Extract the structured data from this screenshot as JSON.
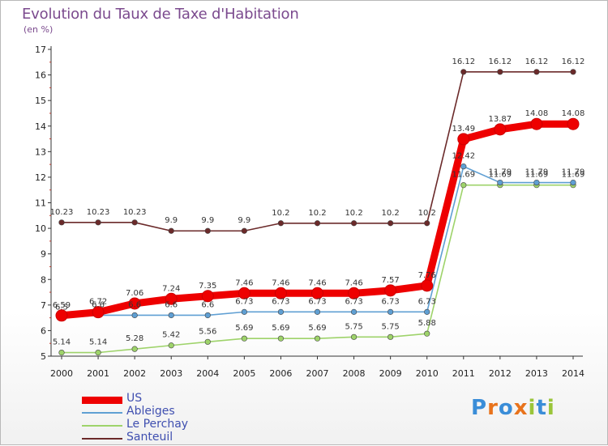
{
  "title": "Evolution du Taux de Taxe d'Habitation",
  "unit": "(en %)",
  "logo": {
    "text": "Proxiti",
    "colors": [
      "#3a8dd8",
      "#e8731c",
      "#3a8dd8",
      "#e8731c",
      "#9ac53a",
      "#3a8dd8",
      "#9ac53a"
    ]
  },
  "chart_data": {
    "type": "line",
    "title": "Evolution du Taux de Taxe d'Habitation",
    "ylabel": "(en %)",
    "xlabel": "",
    "ylim": [
      5,
      17
    ],
    "yticks": [
      "5",
      "6",
      "7",
      "8",
      "9",
      "10",
      "11",
      "12",
      "13",
      "14",
      "15",
      "16",
      "17"
    ],
    "categories": [
      "2000",
      "2001",
      "2002",
      "2003",
      "2004",
      "2005",
      "2006",
      "2007",
      "2008",
      "2009",
      "2010",
      "2011",
      "2012",
      "2013",
      "2014"
    ],
    "grid": false,
    "legend": "bottom-left",
    "series": [
      {
        "name": "Santeuil",
        "color": "#6b2a2a",
        "values": [
          10.23,
          10.23,
          10.23,
          9.9,
          9.9,
          9.9,
          10.2,
          10.2,
          10.2,
          10.2,
          10.2,
          16.12,
          16.12,
          16.12,
          16.12
        ],
        "labels": [
          "10.23",
          "10.23",
          "10.23",
          "9.9",
          "9.9",
          "9.9",
          "10.2",
          "10.2",
          "10.2",
          "10.2",
          "10.2",
          "16.12",
          "16.12",
          "16.12",
          "16.12"
        ]
      },
      {
        "name": "Le Perchay",
        "color": "#9ed36a",
        "values": [
          5.14,
          5.14,
          5.28,
          5.42,
          5.56,
          5.69,
          5.69,
          5.69,
          5.75,
          5.75,
          5.88,
          11.69,
          11.69,
          11.69,
          11.69
        ],
        "labels": [
          "5.14",
          "5.14",
          "5.28",
          "5.42",
          "5.56",
          "5.69",
          "5.69",
          "5.69",
          "5.75",
          "5.75",
          "5.88",
          "11.69",
          "11.69",
          "11.69",
          "11.69"
        ]
      },
      {
        "name": "Ableiges",
        "color": "#5f9fd3",
        "values": [
          6.5,
          6.6,
          6.6,
          6.6,
          6.6,
          6.73,
          6.73,
          6.73,
          6.73,
          6.73,
          6.73,
          12.42,
          11.79,
          11.79,
          11.79
        ],
        "labels": [
          "6.5",
          "6.6",
          "6.6",
          "6.6",
          "6.6",
          "6.73",
          "6.73",
          "6.73",
          "6.73",
          "6.73",
          "6.73",
          "12.42",
          "11.79",
          "11.79",
          "11.79"
        ]
      },
      {
        "name": "US",
        "color": "#ee0000",
        "values": [
          6.59,
          6.72,
          7.06,
          7.24,
          7.35,
          7.46,
          7.46,
          7.46,
          7.46,
          7.57,
          7.76,
          13.49,
          13.87,
          14.08,
          14.08
        ],
        "labels": [
          "6.59",
          "6.72",
          "7.06",
          "7.24",
          "7.35",
          "7.46",
          "7.46",
          "7.46",
          "7.46",
          "7.57",
          "7.76",
          "13.49",
          "13.87",
          "14.08",
          "14.08"
        ]
      }
    ]
  },
  "legend_items": [
    {
      "label": "US",
      "color": "#ee0000",
      "thickness": 9
    },
    {
      "label": "Ableiges",
      "color": "#5f9fd3",
      "thickness": 2
    },
    {
      "label": "Le Perchay",
      "color": "#9ed36a",
      "thickness": 2
    },
    {
      "label": "Santeuil",
      "color": "#6b2a2a",
      "thickness": 2
    }
  ]
}
